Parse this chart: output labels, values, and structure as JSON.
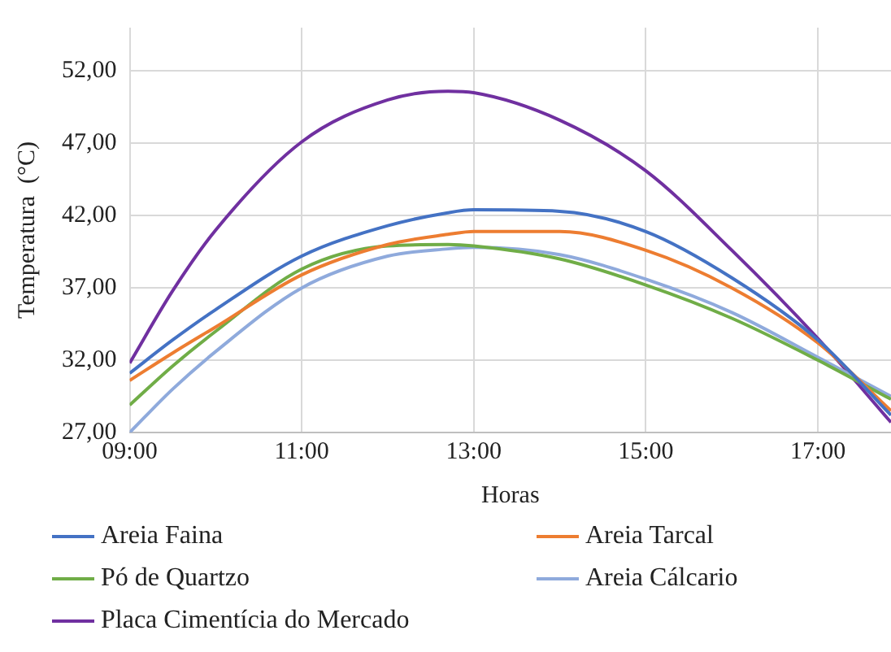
{
  "chart_data": {
    "type": "line",
    "xlabel": "Horas",
    "ylabel": "Temperatura  (°C)",
    "x": [
      9,
      9.5,
      10,
      11,
      12,
      12.7,
      13,
      14,
      15,
      16,
      17,
      17.85
    ],
    "series": [
      {
        "name": "Areia Faina",
        "color": "#4472c4",
        "values": [
          31.1,
          33.4,
          35.5,
          39.2,
          41.3,
          42.2,
          42.4,
          42.3,
          40.9,
          37.7,
          33.4,
          28.2
        ]
      },
      {
        "name": "Areia Tarcal",
        "color": "#ed7d31",
        "values": [
          30.6,
          32.5,
          34.3,
          37.9,
          40.0,
          40.7,
          40.9,
          40.9,
          39.6,
          37.0,
          33.2,
          28.5
        ]
      },
      {
        "name": "Pó de Quartzo",
        "color": "#70ad47",
        "values": [
          28.9,
          31.6,
          34.0,
          38.3,
          39.9,
          40.0,
          39.9,
          39.0,
          37.2,
          34.9,
          32.0,
          29.3
        ]
      },
      {
        "name": "Areia Cálcario",
        "color": "#8faadc",
        "values": [
          27.0,
          30.0,
          32.6,
          37.0,
          39.2,
          39.7,
          39.8,
          39.3,
          37.6,
          35.3,
          32.2,
          29.5
        ]
      },
      {
        "name": "Placa Cimentícia do Mercado",
        "color": "#7030a0",
        "values": [
          31.8,
          36.8,
          41.0,
          47.1,
          50.0,
          50.6,
          50.5,
          48.6,
          45.1,
          39.6,
          33.5,
          27.7
        ]
      }
    ],
    "xlim": [
      9,
      17.85
    ],
    "xticks": [
      {
        "value": 9,
        "label": "09:00"
      },
      {
        "value": 11,
        "label": "11:00"
      },
      {
        "value": 13,
        "label": "13:00"
      },
      {
        "value": 15,
        "label": "15:00"
      },
      {
        "value": 17,
        "label": "17:00"
      }
    ],
    "ylim": [
      27,
      55
    ],
    "yticks": [
      {
        "value": 27,
        "label": "27,00"
      },
      {
        "value": 32,
        "label": "32,00"
      },
      {
        "value": 37,
        "label": "37,00"
      },
      {
        "value": 42,
        "label": "42,00"
      },
      {
        "value": 47,
        "label": "47,00"
      },
      {
        "value": 52,
        "label": "52,00"
      }
    ],
    "grid": true,
    "legend": "bottom",
    "marker": "none",
    "line_style": "solid"
  }
}
